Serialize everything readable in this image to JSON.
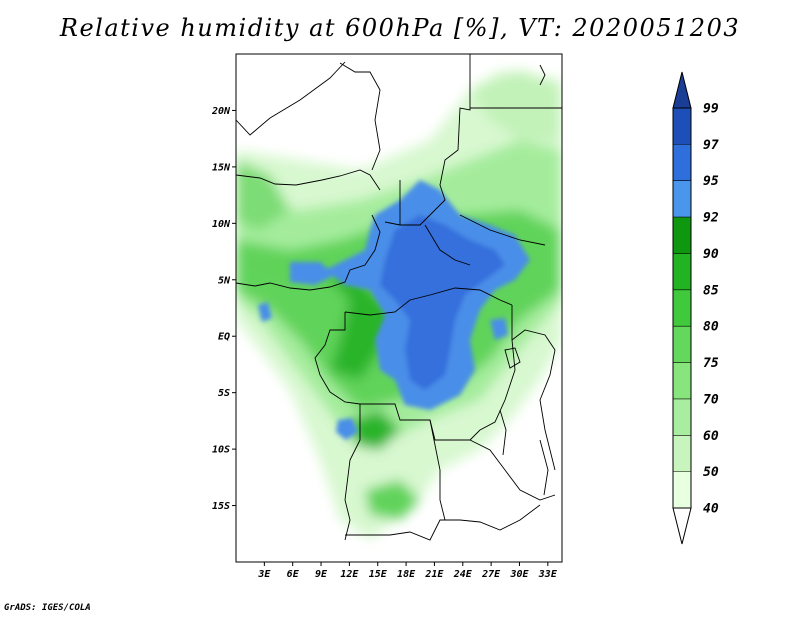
{
  "title": "Relative humidity at 600hPa [%], VT: 2020051203",
  "credit": "GrADS: IGES/COLA",
  "map": {
    "lon_range": [
      0,
      34.5
    ],
    "lat_range": [
      -20,
      25
    ],
    "y_ticks": [
      {
        "lat": 20,
        "label": "20N"
      },
      {
        "lat": 15,
        "label": "15N"
      },
      {
        "lat": 10,
        "label": "10N"
      },
      {
        "lat": 5,
        "label": "5N"
      },
      {
        "lat": 0,
        "label": "EQ"
      },
      {
        "lat": -5,
        "label": "5S"
      },
      {
        "lat": -10,
        "label": "10S"
      },
      {
        "lat": -15,
        "label": "15S"
      }
    ],
    "x_ticks": [
      {
        "lon": 3,
        "label": "3E"
      },
      {
        "lon": 6,
        "label": "6E"
      },
      {
        "lon": 9,
        "label": "9E"
      },
      {
        "lon": 12,
        "label": "12E"
      },
      {
        "lon": 15,
        "label": "15E"
      },
      {
        "lon": 18,
        "label": "18E"
      },
      {
        "lon": 21,
        "label": "21E"
      },
      {
        "lon": 24,
        "label": "24E"
      },
      {
        "lon": 27,
        "label": "27E"
      },
      {
        "lon": 30,
        "label": "30E"
      },
      {
        "lon": 33,
        "label": "33E"
      }
    ]
  },
  "colorbar": {
    "levels": [
      "40",
      "50",
      "60",
      "70",
      "75",
      "80",
      "85",
      "90",
      "92",
      "95",
      "97",
      "99"
    ],
    "colors": [
      "#ffffff",
      "#e8ffe0",
      "#c8f5be",
      "#a8eda0",
      "#88e47c",
      "#64d85c",
      "#40c93c",
      "#22b322",
      "#109710",
      "#4a96ec",
      "#2e6fdc",
      "#1e4fb8",
      "#1a3d96"
    ]
  },
  "colors": {
    "blue_core": "#3470dc",
    "blue_light": "#4a8ee8",
    "green_dark": "#2ab42a",
    "green_mid": "#60d35a",
    "green_light": "#a4ec9c",
    "green_pale": "#d8f8d0"
  }
}
